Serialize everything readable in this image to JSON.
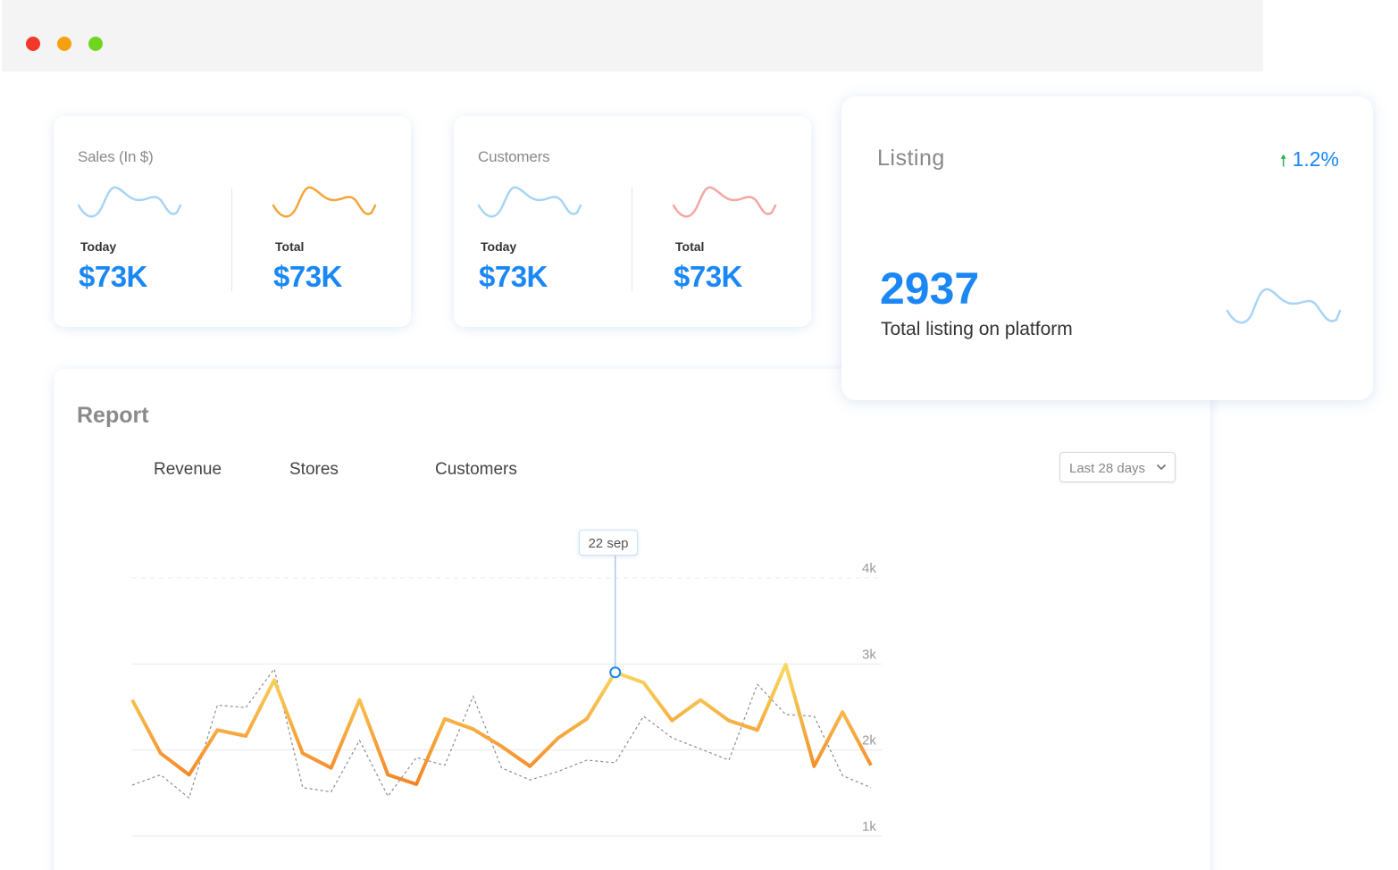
{
  "window": {
    "controls": [
      "close",
      "minimize",
      "maximize"
    ]
  },
  "sales_card": {
    "title": "Sales (In $)",
    "today": {
      "label": "Today",
      "value": "$73K",
      "spark_color": "#a8d4f5"
    },
    "total": {
      "label": "Total",
      "value": "$73K",
      "spark_color": "#f5a53a"
    }
  },
  "customers_card": {
    "title": "Customers",
    "today": {
      "label": "Today",
      "value": "$73K",
      "spark_color": "#a8d4f5"
    },
    "total": {
      "label": "Total",
      "value": "$73K",
      "spark_color": "#f3a7a0"
    }
  },
  "listing_card": {
    "title": "Listing",
    "change": "1.2%",
    "change_direction": "up",
    "value": "2937",
    "subtitle": "Total listing on platform",
    "spark_color": "#a8d4f5"
  },
  "report": {
    "title": "Report",
    "tabs": [
      "Revenue",
      "Stores",
      "Customers"
    ],
    "range_select": "Last 28 days",
    "tooltip": "22 sep"
  },
  "chart_data": {
    "type": "line",
    "y_ticks": [
      "4k",
      "3k",
      "2k",
      "1k"
    ],
    "ylim": [
      1000,
      4200
    ],
    "grid": true,
    "highlight_index": 17,
    "series": [
      {
        "style": "gradient-orange",
        "values": [
          2520,
          1900,
          1650,
          2170,
          2100,
          2750,
          1900,
          1730,
          2520,
          1650,
          1540,
          2300,
          2180,
          1980,
          1750,
          2080,
          2300,
          2840,
          2720,
          2280,
          2520,
          2280,
          2170,
          2930,
          1750,
          2380,
          1760
        ]
      },
      {
        "style": "dashed-gray",
        "values": [
          1530,
          1650,
          1380,
          2460,
          2430,
          2880,
          1500,
          1450,
          2050,
          1400,
          1850,
          1760,
          2560,
          1730,
          1590,
          1690,
          1820,
          1790,
          2330,
          2080,
          1950,
          1820,
          2700,
          2350,
          2330,
          1640,
          1500
        ]
      }
    ]
  }
}
